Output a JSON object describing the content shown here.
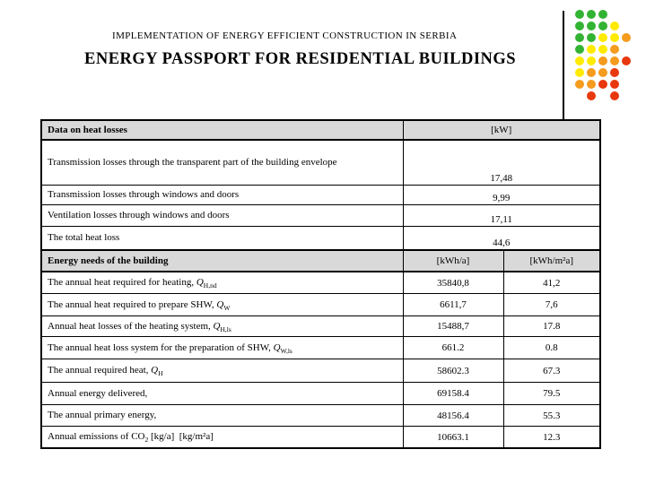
{
  "header": {
    "subtitle": "IMPLEMENTATION OF ENERGY EFFICIENT CONSTRUCTION IN SERBIA",
    "title": "ENERGY PASSPORT FOR RESIDENTIAL BUILDINGS"
  },
  "decoration": {
    "colors": {
      "g": "#33B333",
      "y": "#FFEB00",
      "o": "#F59B1E",
      "r": "#E8380D"
    },
    "color_names": {
      "g": "green",
      "y": "yellow",
      "o": "orange",
      "r": "red"
    },
    "grid": [
      [
        "g",
        "g",
        "g",
        "",
        ""
      ],
      [
        "g",
        "g",
        "g",
        "y",
        ""
      ],
      [
        "g",
        "g",
        "y",
        "y",
        "o"
      ],
      [
        "g",
        "y",
        "y",
        "o",
        ""
      ],
      [
        "y",
        "y",
        "o",
        "o",
        "r"
      ],
      [
        "y",
        "o",
        "o",
        "r",
        ""
      ],
      [
        "o",
        "o",
        "r",
        "r",
        ""
      ],
      [
        "",
        "r",
        "",
        "r",
        ""
      ]
    ]
  },
  "table": {
    "s1": {
      "header": {
        "label": "Data on heat losses",
        "unit": "[kW]"
      },
      "rows": [
        {
          "label": "Transmission losses through the transparent part of the building envelope",
          "value": "17,48"
        },
        {
          "label": "Transmission losses through windows and doors",
          "value": "9,99"
        },
        {
          "label": "Ventilation losses through windows and doors",
          "value": "17,11"
        },
        {
          "label": "The total heat loss",
          "value": "44,6"
        }
      ]
    },
    "s2": {
      "header": {
        "label": "Energy needs of the building",
        "unit1": "[kWh/a]",
        "unit2": "[kWh/m²a]"
      },
      "rows": [
        {
          "label": "The annual heat required for heating, ",
          "sym": "Q",
          "sub": "H,nd",
          "label2": "",
          "v1": "35840,8",
          "v2": "41,2"
        },
        {
          "label": "The annual heat required to prepare SHW, ",
          "sym": "Q",
          "sub": "W",
          "label2": "",
          "v1": "6611,7",
          "v2": "7,6"
        },
        {
          "label": "Annual heat losses of the heating system, ",
          "sym": "Q",
          "sub": "H,ls",
          "label2": "",
          "v1": "15488,7",
          "v2": "17.8"
        },
        {
          "label": "The annual heat loss system for the preparation of SHW, ",
          "sym": "Q",
          "sub": "W,ls",
          "label2": "",
          "v1": "661.2",
          "v2": "0.8"
        },
        {
          "label": "The annual required heat, ",
          "sym": "Q",
          "sub": "H",
          "label2": "",
          "v1": "58602.3",
          "v2": "67.3"
        },
        {
          "label": "Annual energy delivered,",
          "sym": "",
          "sub": "",
          "label2": "",
          "v1": "69158.4",
          "v2": "79.5"
        },
        {
          "label": "The annual primary energy,",
          "sym": "",
          "sub": "",
          "label2": "",
          "v1": "48156.4",
          "v2": "55.3"
        },
        {
          "label": "Annual emissions of CO",
          "sym": "",
          "sub": "2",
          "label2": " [kg/a]  [kg/m²a]",
          "v1": "10663.1",
          "v2": "12.3"
        }
      ]
    }
  }
}
